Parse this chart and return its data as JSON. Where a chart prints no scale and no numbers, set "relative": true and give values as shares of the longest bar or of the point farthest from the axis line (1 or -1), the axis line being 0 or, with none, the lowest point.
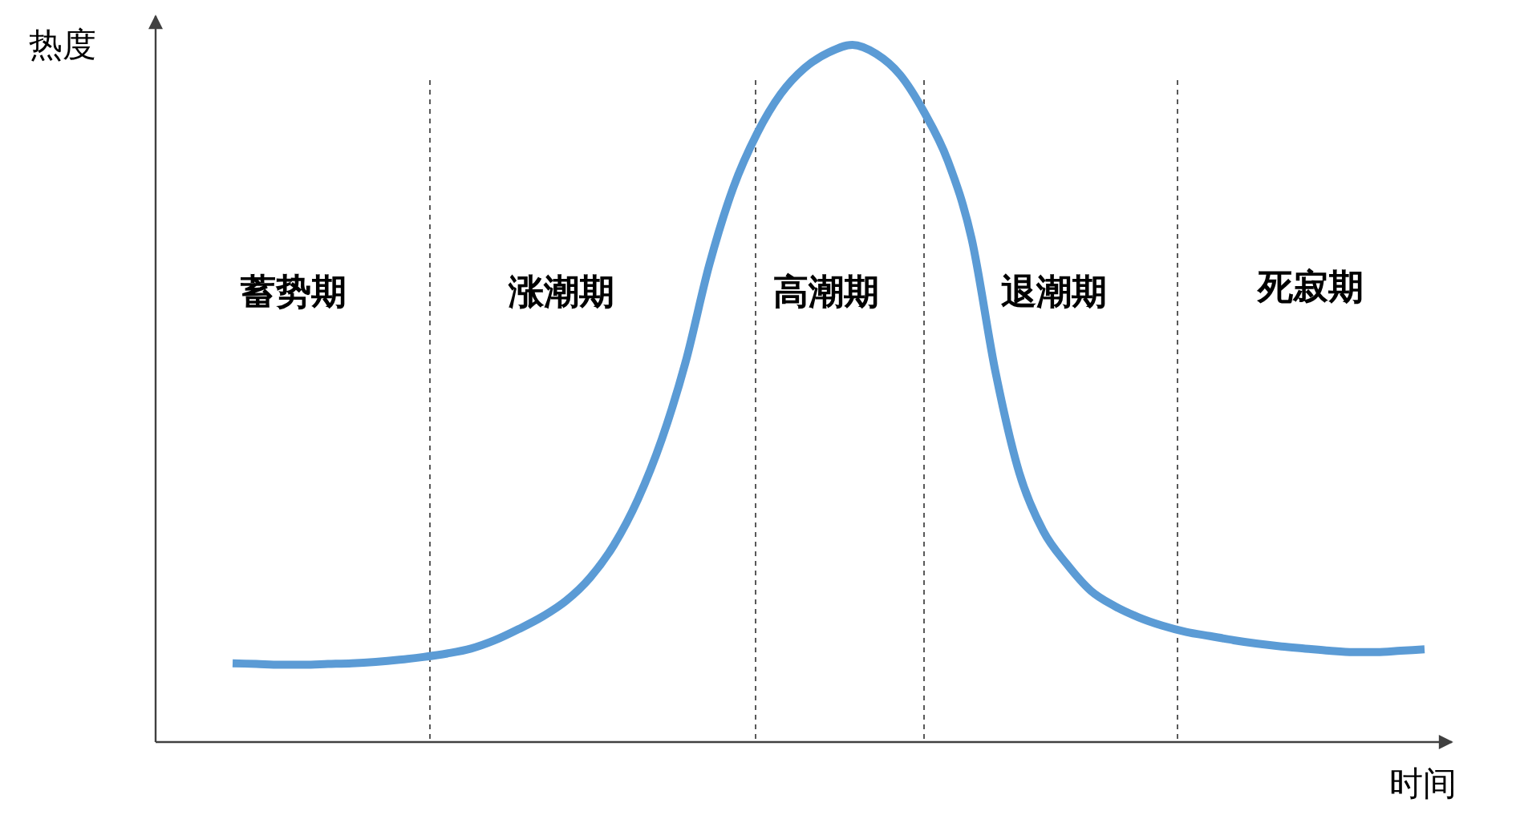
{
  "chart_data": {
    "type": "line",
    "relative": true,
    "xlabel": "时间",
    "ylabel": "热度",
    "categories": [
      null,
      null,
      null,
      null,
      null,
      null,
      null,
      null,
      null,
      null,
      null,
      null,
      null,
      null,
      null,
      null,
      null,
      null,
      null,
      null,
      null,
      null,
      null,
      null,
      null,
      null,
      null,
      null,
      null,
      null,
      null,
      null,
      null,
      null,
      null,
      null,
      null,
      null,
      null,
      null,
      null,
      null,
      null,
      null,
      null,
      null,
      null,
      null,
      null,
      null,
      null
    ],
    "series": [
      {
        "color": "#5b9bd5",
        "values": [
          0.113,
          0.112,
          0.111,
          0.111,
          0.112,
          0.113,
          0.115,
          0.118,
          0.122,
          0.127,
          0.134,
          0.146,
          0.162,
          0.18,
          0.203,
          0.236,
          0.283,
          0.348,
          0.434,
          0.545,
          0.685,
          0.795,
          0.873,
          0.93,
          0.967,
          0.989,
          1,
          0.987,
          0.957,
          0.904,
          0.834,
          0.722,
          0.531,
          0.386,
          0.303,
          0.255,
          0.217,
          0.195,
          0.179,
          0.167,
          0.158,
          0.152,
          0.146,
          0.141,
          0.137,
          0.134,
          0.131,
          0.129,
          0.129,
          0.131,
          0.133
        ]
      }
    ],
    "annotations": [
      "蓄势期",
      "涨潮期",
      "高潮期",
      "退潮期",
      "死寂期"
    ]
  }
}
